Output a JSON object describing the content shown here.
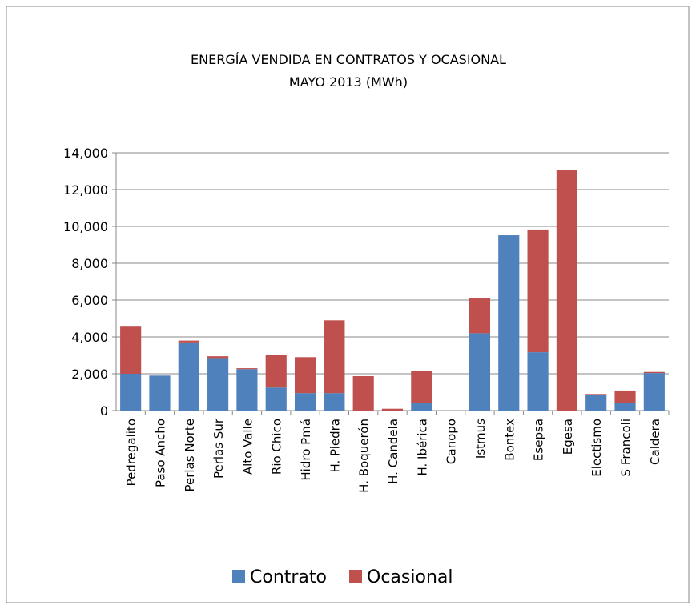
{
  "chart_data": {
    "type": "stacked_bar",
    "title": "ENERGÍA VENDIDA EN CONTRATOS Y OCASIONAL",
    "subtitle": "MAYO   2013  (MWh)",
    "categories": [
      "Pedregalito",
      "Paso Ancho",
      "Perlas Norte",
      "Perlas Sur",
      "Alto Valle",
      "Rio Chico",
      "Hidro Pmá",
      "H. Piedra",
      "H. Boquerón",
      "H. Candela",
      "H. Ibérica",
      "Canopo",
      "Istmus",
      "Bontex",
      "Esepsa",
      "Egesa",
      "Electismo",
      "S Francoli",
      "Caldera"
    ],
    "series": [
      {
        "name": "Contrato",
        "color": "#4f81bd",
        "values": [
          2000,
          1900,
          3700,
          2850,
          2250,
          1250,
          950,
          950,
          0,
          0,
          430,
          0,
          4200,
          9520,
          3170,
          0,
          830,
          400,
          2040
        ]
      },
      {
        "name": "Ocasional",
        "color": "#c0504d",
        "values": [
          2600,
          0,
          100,
          100,
          50,
          1750,
          1950,
          3950,
          1870,
          100,
          1740,
          0,
          1930,
          0,
          6660,
          13050,
          70,
          690,
          60
        ]
      }
    ],
    "ylim": [
      0,
      14000
    ],
    "yticks": [
      0,
      {
        "value": 2000,
        "label": "2,000"
      },
      {
        "value": 4000,
        "label": "4,000"
      },
      {
        "value": 6000,
        "label": "6,000"
      },
      {
        "value": 8000,
        "label": "8,000"
      },
      {
        "value": 10000,
        "label": "10,000"
      },
      {
        "value": 12000,
        "label": "12,000"
      },
      {
        "value": 14000,
        "label": "14,000"
      }
    ],
    "grid": true,
    "legend": "bottom"
  }
}
